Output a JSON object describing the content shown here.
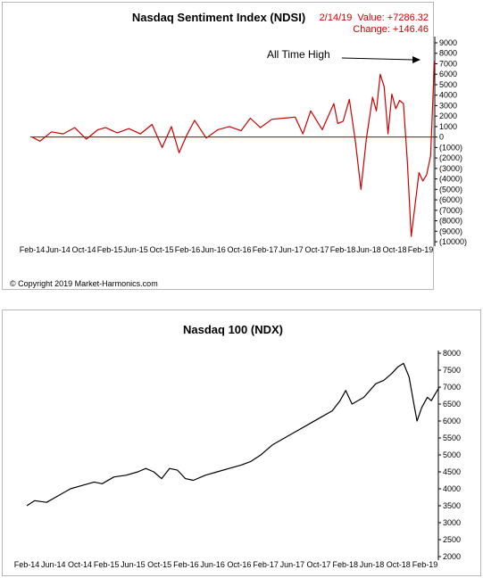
{
  "chart_data": [
    {
      "type": "line",
      "title": "Nasdaq  Sentiment Index (NDSI)",
      "readout": {
        "date": "2/14/19",
        "value": "Value: +7286.32",
        "change": "Change: +146.46"
      },
      "annotation": "All Time High",
      "copyright": "© Copyright 2019 Market-Harmonics.com",
      "colors": {
        "series": "#cc0000",
        "zero_line": "#990000"
      },
      "x_tick_labels": [
        "Feb-14",
        "Jun-14",
        "Oct-14",
        "Feb-15",
        "Jun-15",
        "Oct-15",
        "Feb-16",
        "Jun-16",
        "Oct-16",
        "Feb-17",
        "Jun-17",
        "Oct-17",
        "Feb-18",
        "Jun-18",
        "Oct-18",
        "Feb-19"
      ],
      "y_tick_labels": [
        "9000",
        "8000",
        "7000",
        "6000",
        "5000",
        "4000",
        "3000",
        "2000",
        "1000",
        "0",
        "(1000)",
        "(2000)",
        "(3000)",
        "(4000)",
        "(5000)",
        "(6000)",
        "(7000)",
        "(8000)",
        "(9000)",
        "(10000)"
      ],
      "ylim": [
        -10000,
        9000
      ],
      "x_range": [
        "2014-02",
        "2019-02"
      ],
      "series": [
        {
          "x": [
            2014.1,
            2014.2,
            2014.35,
            2014.5,
            2014.65,
            2014.8,
            2014.95,
            2015.05,
            2015.2,
            2015.35,
            2015.5,
            2015.65,
            2015.78,
            2015.9,
            2016.0,
            2016.1,
            2016.2,
            2016.35,
            2016.5,
            2016.65,
            2016.8,
            2016.92,
            2017.05,
            2017.2,
            2017.35,
            2017.5,
            2017.6,
            2017.7,
            2017.85,
            2018.0,
            2018.05,
            2018.12,
            2018.2,
            2018.28,
            2018.35,
            2018.42,
            2018.5,
            2018.55,
            2018.6,
            2018.65,
            2018.7,
            2018.75,
            2018.8,
            2018.85,
            2018.9,
            2018.95,
            2019.0,
            2019.05,
            2019.1,
            2019.15,
            2019.2,
            2019.25,
            2019.3
          ],
          "y": [
            0,
            -400,
            500,
            300,
            900,
            -200,
            700,
            900,
            400,
            800,
            300,
            1200,
            -1000,
            1000,
            -1500,
            200,
            1600,
            -100,
            700,
            1000,
            600,
            1800,
            900,
            1700,
            1800,
            1900,
            300,
            2500,
            700,
            3200,
            1300,
            1500,
            3600,
            -500,
            -5000,
            -200,
            3800,
            2500,
            6000,
            4800,
            300,
            4100,
            2700,
            3500,
            3200,
            -2400,
            -9500,
            -6500,
            -3400,
            -4200,
            -3600,
            -1800,
            7286
          ]
        }
      ]
    },
    {
      "type": "line",
      "title": "Nasdaq 100 (NDX)",
      "colors": {
        "series": "#000000"
      },
      "x_tick_labels": [
        "Feb-14",
        "Jun-14",
        "Oct-14",
        "Feb-15",
        "Jun-15",
        "Oct-15",
        "Feb-16",
        "Jun-16",
        "Oct-16",
        "Feb-17",
        "Jun-17",
        "Oct-17",
        "Feb-18",
        "Jun-18",
        "Oct-18",
        "Feb-19"
      ],
      "y_tick_labels": [
        "8000",
        "7500",
        "7000",
        "6500",
        "6000",
        "5500",
        "5000",
        "4500",
        "4000",
        "3500",
        "3000",
        "2500",
        "2000"
      ],
      "ylim": [
        2000,
        8000
      ],
      "x_range": [
        "2014-02",
        "2019-02"
      ],
      "series": [
        {
          "x": [
            2014.1,
            2014.2,
            2014.35,
            2014.5,
            2014.65,
            2014.8,
            2014.95,
            2015.05,
            2015.2,
            2015.35,
            2015.5,
            2015.6,
            2015.7,
            2015.8,
            2015.9,
            2016.0,
            2016.1,
            2016.2,
            2016.35,
            2016.5,
            2016.65,
            2016.8,
            2016.92,
            2017.05,
            2017.2,
            2017.35,
            2017.5,
            2017.65,
            2017.8,
            2017.95,
            2018.05,
            2018.12,
            2018.2,
            2018.35,
            2018.5,
            2018.6,
            2018.7,
            2018.78,
            2018.85,
            2018.92,
            2018.98,
            2019.02,
            2019.08,
            2019.15,
            2019.2,
            2019.25,
            2019.3
          ],
          "y": [
            3500,
            3650,
            3600,
            3800,
            4000,
            4100,
            4200,
            4150,
            4350,
            4400,
            4500,
            4600,
            4500,
            4300,
            4600,
            4550,
            4300,
            4250,
            4400,
            4500,
            4600,
            4700,
            4800,
            5000,
            5300,
            5500,
            5700,
            5900,
            6100,
            6300,
            6600,
            6900,
            6500,
            6700,
            7100,
            7200,
            7400,
            7600,
            7700,
            7300,
            6500,
            6000,
            6400,
            6700,
            6600,
            6800,
            7000
          ]
        }
      ]
    }
  ]
}
